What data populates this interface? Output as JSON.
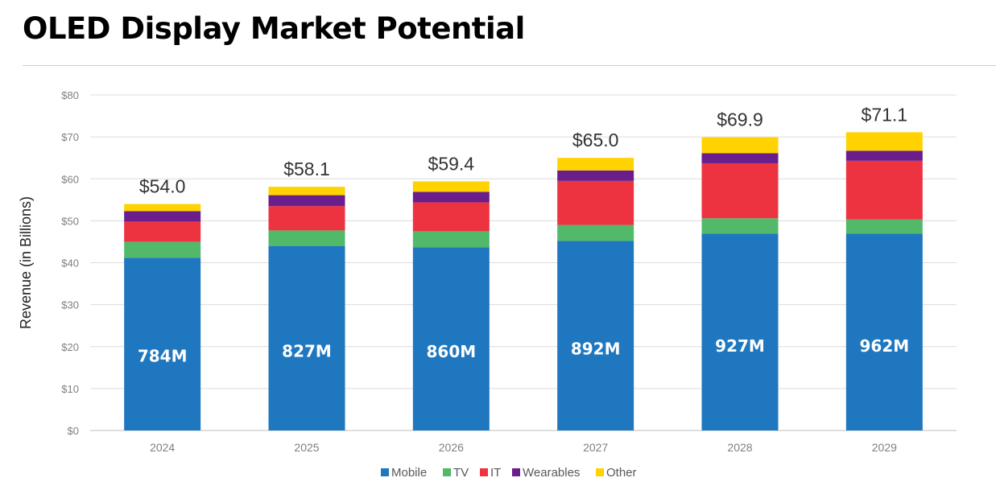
{
  "title": "OLED Display Market Potential",
  "chart_data": {
    "type": "bar",
    "stacked": true,
    "title": "OLED Display Market Potential",
    "xlabel": "",
    "ylabel": "Revenue (in Billions)",
    "ylim": [
      0,
      80
    ],
    "yticks": [
      0,
      10,
      20,
      30,
      40,
      50,
      60,
      70,
      80
    ],
    "ytick_labels": [
      "$0",
      "$10",
      "$20",
      "$30",
      "$40",
      "$50",
      "$60",
      "$70",
      "$80"
    ],
    "grid": true,
    "legend_position": "bottom",
    "categories": [
      "2024",
      "2025",
      "2026",
      "2027",
      "2028",
      "2029"
    ],
    "series": [
      {
        "name": "Mobile",
        "color": "#1f77c0",
        "values": [
          41.2,
          44.0,
          43.7,
          45.2,
          46.9,
          46.9
        ]
      },
      {
        "name": "TV",
        "color": "#52b96b",
        "values": [
          3.8,
          3.7,
          3.8,
          3.8,
          3.7,
          3.4
        ]
      },
      {
        "name": "IT",
        "color": "#ee3340",
        "values": [
          4.8,
          5.8,
          6.9,
          10.5,
          13.1,
          14.0
        ]
      },
      {
        "name": "Wearables",
        "color": "#6a1e8c",
        "values": [
          2.5,
          2.6,
          2.5,
          2.5,
          2.4,
          2.4
        ]
      },
      {
        "name": "Other",
        "color": "#ffd200",
        "values": [
          1.7,
          2.0,
          2.5,
          3.0,
          3.8,
          4.4
        ]
      }
    ],
    "total_labels": [
      "$54.0",
      "$58.1",
      "$59.4",
      "$65.0",
      "$69.9",
      "$71.1"
    ],
    "mobile_unit_labels": [
      "784M",
      "827M",
      "860M",
      "892M",
      "927M",
      "962M"
    ]
  }
}
